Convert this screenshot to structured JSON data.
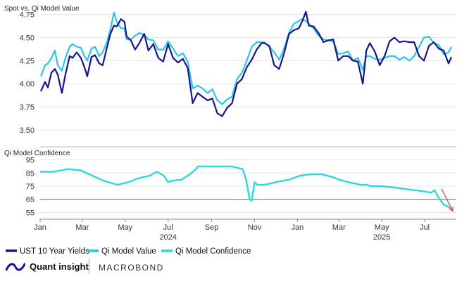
{
  "chart_data": [
    {
      "type": "line",
      "title": "Spot vs. Qi Model Value",
      "ylim": [
        3.5,
        4.8
      ],
      "yticks": [
        "4.75",
        "4.50",
        "4.25",
        "4.00",
        "3.75",
        "3.50"
      ],
      "ytick_values": [
        4.75,
        4.5,
        4.25,
        4.0,
        3.75,
        3.5
      ],
      "grid": true,
      "colors": {
        "spot": "#16168a",
        "model": "#2ec4e6"
      },
      "series": [
        {
          "name": "UST 10 Year Yields",
          "x": [
            "2024-01-02",
            "2024-01-08",
            "2024-01-12",
            "2024-01-17",
            "2024-01-22",
            "2024-01-26",
            "2024-02-01",
            "2024-02-06",
            "2024-02-12",
            "2024-02-16",
            "2024-02-22",
            "2024-02-28",
            "2024-03-04",
            "2024-03-08",
            "2024-03-14",
            "2024-03-19",
            "2024-03-25",
            "2024-03-30",
            "2024-04-05",
            "2024-04-10",
            "2024-04-15",
            "2024-04-19",
            "2024-04-25",
            "2024-04-30",
            "2024-05-03",
            "2024-05-09",
            "2024-05-15",
            "2024-05-21",
            "2024-05-28",
            "2024-06-03",
            "2024-06-10",
            "2024-06-17",
            "2024-06-24",
            "2024-07-01",
            "2024-07-08",
            "2024-07-15",
            "2024-07-22",
            "2024-07-29",
            "2024-08-05",
            "2024-08-12",
            "2024-08-19",
            "2024-08-26",
            "2024-09-02",
            "2024-09-09",
            "2024-09-16",
            "2024-09-23",
            "2024-09-30",
            "2024-10-07",
            "2024-10-14",
            "2024-10-21",
            "2024-10-28",
            "2024-11-04",
            "2024-11-11",
            "2024-11-15",
            "2024-11-22",
            "2024-11-29",
            "2024-12-06",
            "2024-12-13",
            "2024-12-20",
            "2024-12-27",
            "2025-01-03",
            "2025-01-08",
            "2025-01-13",
            "2025-01-17",
            "2025-01-24",
            "2025-01-31",
            "2025-02-07",
            "2025-02-14",
            "2025-02-21",
            "2025-02-28",
            "2025-03-07",
            "2025-03-14",
            "2025-03-21",
            "2025-03-28",
            "2025-04-04",
            "2025-04-09",
            "2025-04-14",
            "2025-04-21",
            "2025-04-28",
            "2025-05-05",
            "2025-05-12",
            "2025-05-19",
            "2025-05-26",
            "2025-06-02",
            "2025-06-09",
            "2025-06-16",
            "2025-06-23",
            "2025-06-30",
            "2025-07-07",
            "2025-07-14",
            "2025-07-21",
            "2025-07-28",
            "2025-08-04",
            "2025-08-08"
          ],
          "values": [
            3.92,
            4.02,
            3.96,
            4.12,
            4.16,
            4.1,
            3.9,
            4.1,
            4.3,
            4.28,
            4.34,
            4.28,
            4.18,
            4.08,
            4.29,
            4.31,
            4.22,
            4.2,
            4.39,
            4.54,
            4.63,
            4.62,
            4.7,
            4.67,
            4.51,
            4.47,
            4.37,
            4.44,
            4.54,
            4.36,
            4.43,
            4.28,
            4.24,
            4.43,
            4.28,
            4.23,
            4.27,
            4.17,
            3.79,
            3.9,
            3.86,
            3.82,
            3.84,
            3.68,
            3.65,
            3.74,
            3.79,
            4.0,
            4.05,
            4.18,
            4.26,
            4.37,
            4.44,
            4.44,
            4.41,
            4.2,
            4.16,
            4.33,
            4.54,
            4.58,
            4.6,
            4.68,
            4.78,
            4.63,
            4.62,
            4.55,
            4.45,
            4.47,
            4.48,
            4.25,
            4.3,
            4.3,
            4.25,
            4.24,
            4.0,
            4.36,
            4.44,
            4.35,
            4.2,
            4.3,
            4.46,
            4.5,
            4.45,
            4.46,
            4.45,
            4.45,
            4.3,
            4.25,
            4.41,
            4.45,
            4.38,
            4.36,
            4.22,
            4.29
          ]
        },
        {
          "name": "Qi Model Value",
          "x": [
            "2024-01-02",
            "2024-01-08",
            "2024-01-12",
            "2024-01-17",
            "2024-01-22",
            "2024-01-26",
            "2024-02-01",
            "2024-02-06",
            "2024-02-12",
            "2024-02-16",
            "2024-02-22",
            "2024-02-28",
            "2024-03-04",
            "2024-03-08",
            "2024-03-14",
            "2024-03-19",
            "2024-03-25",
            "2024-03-30",
            "2024-04-05",
            "2024-04-10",
            "2024-04-15",
            "2024-04-19",
            "2024-04-25",
            "2024-04-30",
            "2024-05-03",
            "2024-05-09",
            "2024-05-15",
            "2024-05-21",
            "2024-05-28",
            "2024-06-03",
            "2024-06-10",
            "2024-06-17",
            "2024-06-24",
            "2024-07-01",
            "2024-07-08",
            "2024-07-15",
            "2024-07-22",
            "2024-07-29",
            "2024-08-05",
            "2024-08-12",
            "2024-08-19",
            "2024-08-26",
            "2024-09-02",
            "2024-09-09",
            "2024-09-16",
            "2024-09-23",
            "2024-09-30",
            "2024-10-07",
            "2024-10-14",
            "2024-10-21",
            "2024-10-28",
            "2024-11-04",
            "2024-11-11",
            "2024-11-15",
            "2024-11-22",
            "2024-11-29",
            "2024-12-06",
            "2024-12-13",
            "2024-12-20",
            "2024-12-27",
            "2025-01-03",
            "2025-01-08",
            "2025-01-13",
            "2025-01-17",
            "2025-01-24",
            "2025-01-31",
            "2025-02-07",
            "2025-02-14",
            "2025-02-21",
            "2025-02-28",
            "2025-03-07",
            "2025-03-14",
            "2025-03-21",
            "2025-03-28",
            "2025-04-04",
            "2025-04-09",
            "2025-04-14",
            "2025-04-21",
            "2025-04-28",
            "2025-05-05",
            "2025-05-12",
            "2025-05-19",
            "2025-05-26",
            "2025-06-02",
            "2025-06-09",
            "2025-06-16",
            "2025-06-23",
            "2025-06-30",
            "2025-07-07",
            "2025-07-14",
            "2025-07-21",
            "2025-07-28",
            "2025-08-04",
            "2025-08-08"
          ],
          "values": [
            4.08,
            4.2,
            4.22,
            4.28,
            4.36,
            4.2,
            4.14,
            4.28,
            4.4,
            4.43,
            4.4,
            4.39,
            4.3,
            4.25,
            4.38,
            4.4,
            4.3,
            4.34,
            4.45,
            4.59,
            4.77,
            4.67,
            4.6,
            4.6,
            4.48,
            4.48,
            4.52,
            4.55,
            4.53,
            4.48,
            4.47,
            4.37,
            4.37,
            4.46,
            4.38,
            4.3,
            4.33,
            4.24,
            3.95,
            3.98,
            3.95,
            3.9,
            3.94,
            3.82,
            3.78,
            3.83,
            3.86,
            4.05,
            4.12,
            4.25,
            4.4,
            4.45,
            4.45,
            4.45,
            4.4,
            4.34,
            4.26,
            4.38,
            4.55,
            4.65,
            4.68,
            4.7,
            4.68,
            4.65,
            4.6,
            4.52,
            4.48,
            4.47,
            4.46,
            4.32,
            4.33,
            4.35,
            4.25,
            4.28,
            4.15,
            4.3,
            4.3,
            4.27,
            4.26,
            4.28,
            4.3,
            4.3,
            4.26,
            4.29,
            4.25,
            4.3,
            4.4,
            4.5,
            4.51,
            4.44,
            4.42,
            4.32,
            4.34,
            4.4
          ]
        }
      ]
    },
    {
      "type": "line",
      "title": "Qi Model Confidence",
      "ylim": [
        52,
        98
      ],
      "yticks": [
        "95",
        "85",
        "75",
        "65",
        "55"
      ],
      "ytick_values": [
        95,
        85,
        75,
        65,
        55
      ],
      "reference_line": 65,
      "grid": true,
      "colors": {
        "confidence": "#2ed8dc",
        "reference": "#6b6b6b",
        "arrow": "#e53935"
      },
      "series": [
        {
          "name": "Qi Model Confidence",
          "x": [
            "2024-01-01",
            "2024-01-20",
            "2024-02-10",
            "2024-02-28",
            "2024-03-15",
            "2024-04-01",
            "2024-04-20",
            "2024-05-05",
            "2024-05-20",
            "2024-06-05",
            "2024-06-15",
            "2024-06-25",
            "2024-07-01",
            "2024-07-05",
            "2024-07-20",
            "2024-08-01",
            "2024-08-10",
            "2024-08-12",
            "2024-08-25",
            "2024-09-10",
            "2024-09-30",
            "2024-10-15",
            "2024-10-20",
            "2024-10-25",
            "2024-10-28",
            "2024-11-01",
            "2024-11-05",
            "2024-11-15",
            "2024-12-01",
            "2024-12-20",
            "2025-01-05",
            "2025-01-20",
            "2025-02-05",
            "2025-02-20",
            "2025-03-01",
            "2025-03-15",
            "2025-04-01",
            "2025-04-10",
            "2025-04-15",
            "2025-05-01",
            "2025-05-20",
            "2025-06-01",
            "2025-06-15",
            "2025-07-01",
            "2025-07-10",
            "2025-07-15",
            "2025-07-20",
            "2025-07-28",
            "2025-08-08"
          ],
          "values": [
            86,
            86,
            88,
            87,
            83,
            79,
            76,
            78,
            81,
            83,
            86,
            83,
            78,
            79,
            80,
            84,
            88,
            90,
            90,
            90,
            90,
            88,
            80,
            65,
            64,
            78,
            76,
            76,
            78,
            80,
            83,
            84,
            84,
            82,
            80,
            78,
            76,
            76,
            75,
            75,
            74,
            73,
            72,
            71,
            70,
            72,
            67,
            61,
            58
          ]
        }
      ],
      "annotation": "red arrow pointing down at end of confidence line"
    }
  ],
  "x_axis": {
    "domain": [
      "2024-01-01",
      "2025-08-15"
    ],
    "tick_labels": [
      {
        "label": "Jan",
        "date": "2024-01-01"
      },
      {
        "label": "Mar",
        "date": "2024-03-01"
      },
      {
        "label": "May",
        "date": "2024-05-01"
      },
      {
        "label": "Jul",
        "date": "2024-07-01"
      },
      {
        "label": "Sep",
        "date": "2024-09-01"
      },
      {
        "label": "Nov",
        "date": "2024-11-01"
      },
      {
        "label": "Jan",
        "date": "2025-01-01"
      },
      {
        "label": "Mar",
        "date": "2025-03-01"
      },
      {
        "label": "May",
        "date": "2025-05-01"
      },
      {
        "label": "Jul",
        "date": "2025-07-01"
      }
    ],
    "year_labels": [
      {
        "label": "2024",
        "date": "2024-07-01"
      },
      {
        "label": "2025",
        "date": "2025-05-01"
      }
    ]
  },
  "legend": {
    "placement": "bottom-left",
    "items": [
      {
        "label": "UST 10 Year Yields",
        "color": "#16168a"
      },
      {
        "label": "Qi Model Value",
        "color": "#2ec4e6"
      },
      {
        "label": "Qi Model Confidence",
        "color": "#2ed8dc"
      }
    ]
  },
  "branding": {
    "qi_name": "Quant insight",
    "macrobond_name": "MACROBOND"
  }
}
